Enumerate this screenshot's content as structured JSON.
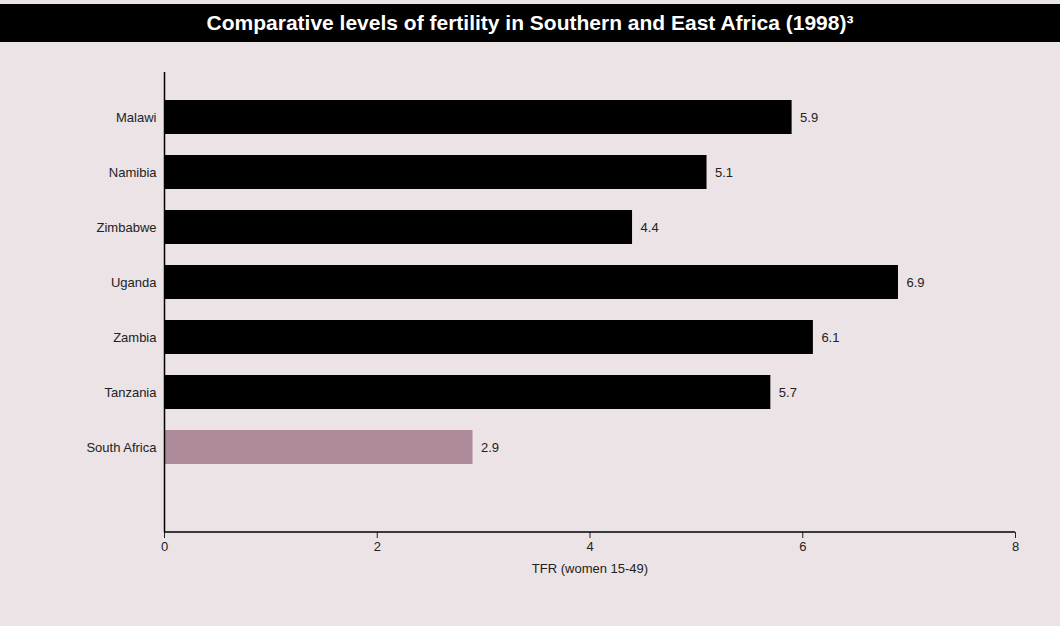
{
  "chart_data": {
    "type": "bar",
    "title": "Comparative levels of fertility in Southern and East Africa (1998)³",
    "orientation": "horizontal",
    "categories": [
      "Malawi",
      "Namibia",
      "Zimbabwe",
      "Uganda",
      "Zambia",
      "Tanzania",
      "South Africa"
    ],
    "values": [
      5.9,
      5.1,
      4.4,
      6.9,
      6.1,
      5.7,
      2.9
    ],
    "colors": [
      "#000000",
      "#000000",
      "#000000",
      "#000000",
      "#000000",
      "#000000",
      "#ad8a99"
    ],
    "xlabel": "TFR (women 15-49)",
    "xlim": [
      0,
      8
    ],
    "xticks": [
      0,
      2,
      4,
      6,
      8
    ],
    "grid": false,
    "data_labels": true
  }
}
